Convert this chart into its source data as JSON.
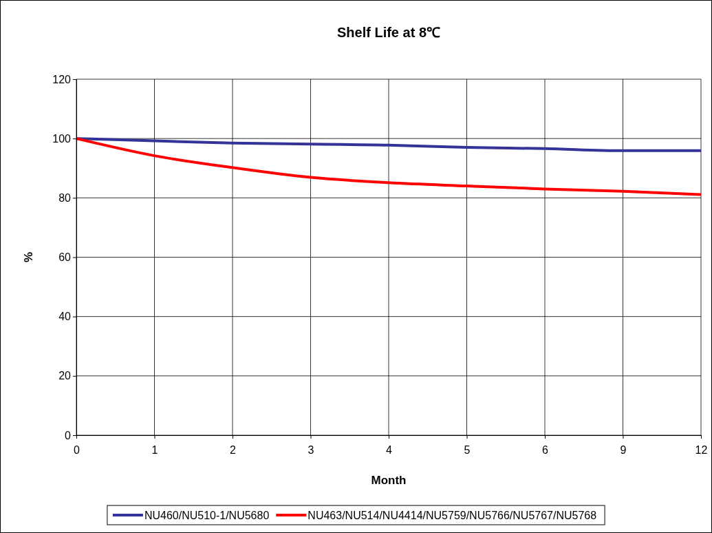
{
  "chart_data": {
    "type": "line",
    "title": "Shelf Life at 8℃",
    "xlabel": "Month",
    "ylabel": "%",
    "categories": [
      "0",
      "1",
      "2",
      "3",
      "4",
      "5",
      "6",
      "9",
      "12"
    ],
    "series": [
      {
        "name": "NU460/NU510-1/NU5680",
        "color": "#333399",
        "values": [
          100,
          99.2,
          98.5,
          98.1,
          97.8,
          97,
          96.6,
          95.9,
          95.9
        ]
      },
      {
        "name": "NU463/NU514/NU4414/NU5759/NU5766/NU5767/NU5768",
        "color": "#ff0000",
        "values": [
          100,
          94.2,
          90.2,
          86.9,
          85.1,
          84,
          83,
          82.2,
          81.1
        ]
      }
    ],
    "ylim": [
      0,
      120
    ],
    "yticks": [
      0,
      20,
      40,
      60,
      80,
      100,
      120
    ],
    "grid": true,
    "legend": "bottom",
    "marker": "none",
    "line_style": "solid"
  }
}
